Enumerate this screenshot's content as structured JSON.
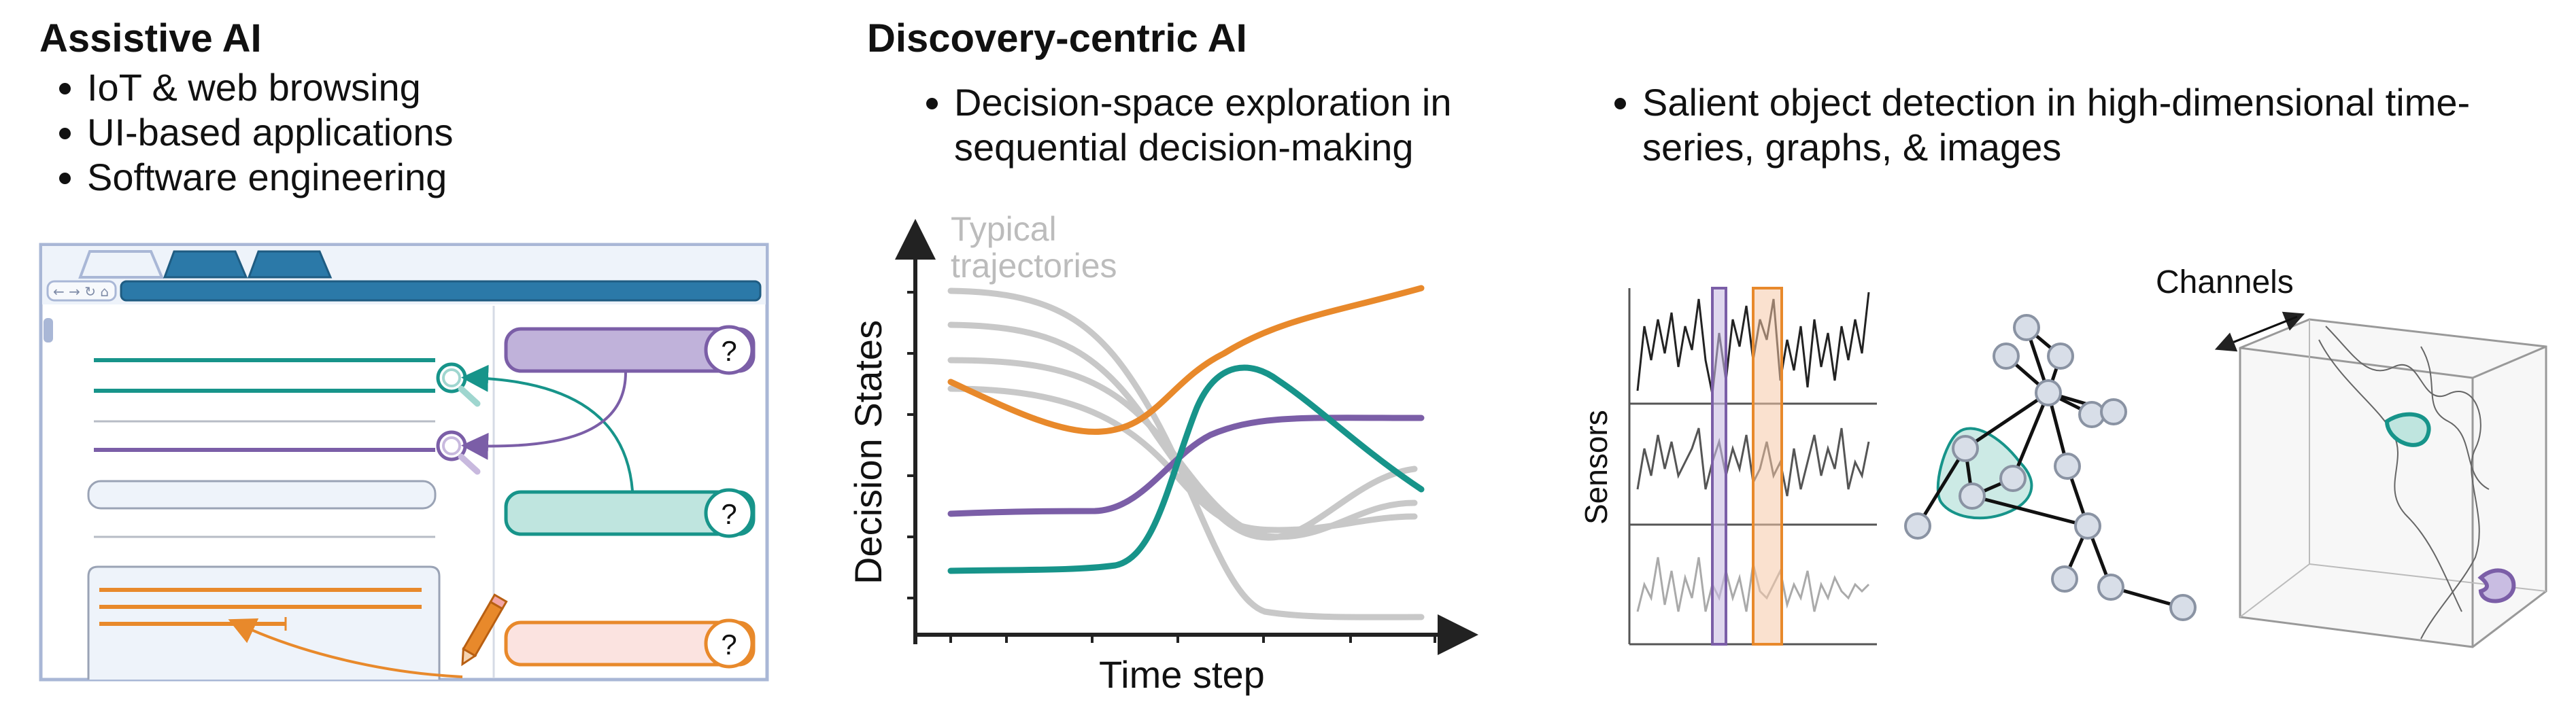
{
  "assistive": {
    "title": "Assistive AI",
    "bullets": [
      "IoT & web browsing",
      "UI-based applications",
      "Software engineering"
    ],
    "bubble_mark": "?"
  },
  "discovery": {
    "title": "Discovery-centric AI",
    "bullet1": [
      "Decision-space exploration in",
      "sequential decision-making"
    ],
    "bullet2": [
      "Salient object detection in high-dimensional time-",
      "series, graphs, & images"
    ]
  },
  "trajectory_plot": {
    "typical_label": [
      "Typical",
      "trajectories"
    ],
    "xlabel": "Time step",
    "ylabel": "Decision States"
  },
  "salient_panel": {
    "sensors_label": "Sensors",
    "channels_label": "Channels"
  },
  "colors": {
    "teal": "#17948a",
    "purple": "#7b5ea7",
    "orange": "#e8892b",
    "gray": "#c8c8c8",
    "browser_border": "#a9b7d6",
    "browser_bg": "#eef3fa",
    "tab_blue": "#2b79a8"
  }
}
